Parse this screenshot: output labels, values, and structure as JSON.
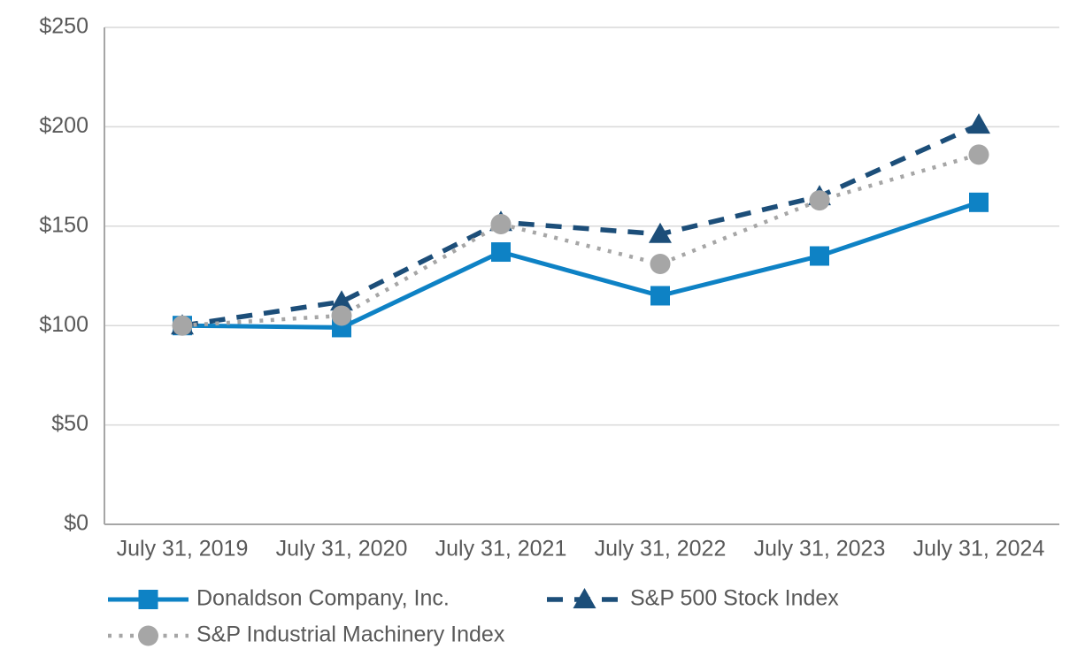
{
  "chart_data": {
    "type": "line",
    "title": "",
    "xlabel": "",
    "ylabel": "",
    "ylim": [
      0,
      250
    ],
    "grid": true,
    "legend_position": "bottom",
    "categories": [
      "July 31, 2019",
      "July 31, 2020",
      "July 31, 2021",
      "July 31, 2022",
      "July 31, 2023",
      "July 31, 2024"
    ],
    "y_ticks": [
      {
        "label": "$0",
        "value": 0
      },
      {
        "label": "$50",
        "value": 50
      },
      {
        "label": "$100",
        "value": 100
      },
      {
        "label": "$150",
        "value": 150
      },
      {
        "label": "$200",
        "value": 200
      },
      {
        "label": "$250",
        "value": 250
      }
    ],
    "series": [
      {
        "name": "Donaldson Company, Inc.",
        "values": [
          100,
          99,
          137,
          115,
          135,
          162
        ],
        "color": "#0e82c5",
        "line_style": "solid",
        "marker": "square"
      },
      {
        "name": "S&P 500 Stock Index",
        "values": [
          100,
          112,
          152,
          146,
          165,
          201
        ],
        "color": "#1c4e79",
        "line_style": "dashed",
        "marker": "triangle"
      },
      {
        "name": "S&P Industrial Machinery Index",
        "values": [
          100,
          105,
          151,
          131,
          163,
          186
        ],
        "color": "#a6a6a6",
        "line_style": "dotted",
        "marker": "circle"
      }
    ]
  },
  "colors": {
    "background": "#ffffff",
    "gridline": "#d9d9d9",
    "axis": "#a6a6a6",
    "text": "#595959"
  }
}
